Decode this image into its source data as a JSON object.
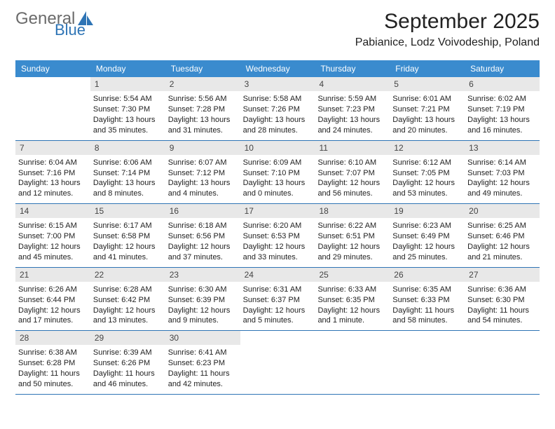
{
  "brand": {
    "general": "General",
    "blue": "Blue",
    "logo_color": "#2e74b5"
  },
  "title": "September 2025",
  "location": "Pabianice, Lodz Voivodeship, Poland",
  "colors": {
    "header_bg": "#3a8bce",
    "header_text": "#ffffff",
    "daynum_bg": "#e8e8e8",
    "row_border": "#2e74b5",
    "text": "#222222",
    "background": "#ffffff"
  },
  "dow": [
    "Sunday",
    "Monday",
    "Tuesday",
    "Wednesday",
    "Thursday",
    "Friday",
    "Saturday"
  ],
  "weeks": [
    [
      {
        "num": "",
        "sunrise": "",
        "sunset": "",
        "daylight": ""
      },
      {
        "num": "1",
        "sunrise": "Sunrise: 5:54 AM",
        "sunset": "Sunset: 7:30 PM",
        "daylight": "Daylight: 13 hours and 35 minutes."
      },
      {
        "num": "2",
        "sunrise": "Sunrise: 5:56 AM",
        "sunset": "Sunset: 7:28 PM",
        "daylight": "Daylight: 13 hours and 31 minutes."
      },
      {
        "num": "3",
        "sunrise": "Sunrise: 5:58 AM",
        "sunset": "Sunset: 7:26 PM",
        "daylight": "Daylight: 13 hours and 28 minutes."
      },
      {
        "num": "4",
        "sunrise": "Sunrise: 5:59 AM",
        "sunset": "Sunset: 7:23 PM",
        "daylight": "Daylight: 13 hours and 24 minutes."
      },
      {
        "num": "5",
        "sunrise": "Sunrise: 6:01 AM",
        "sunset": "Sunset: 7:21 PM",
        "daylight": "Daylight: 13 hours and 20 minutes."
      },
      {
        "num": "6",
        "sunrise": "Sunrise: 6:02 AM",
        "sunset": "Sunset: 7:19 PM",
        "daylight": "Daylight: 13 hours and 16 minutes."
      }
    ],
    [
      {
        "num": "7",
        "sunrise": "Sunrise: 6:04 AM",
        "sunset": "Sunset: 7:16 PM",
        "daylight": "Daylight: 13 hours and 12 minutes."
      },
      {
        "num": "8",
        "sunrise": "Sunrise: 6:06 AM",
        "sunset": "Sunset: 7:14 PM",
        "daylight": "Daylight: 13 hours and 8 minutes."
      },
      {
        "num": "9",
        "sunrise": "Sunrise: 6:07 AM",
        "sunset": "Sunset: 7:12 PM",
        "daylight": "Daylight: 13 hours and 4 minutes."
      },
      {
        "num": "10",
        "sunrise": "Sunrise: 6:09 AM",
        "sunset": "Sunset: 7:10 PM",
        "daylight": "Daylight: 13 hours and 0 minutes."
      },
      {
        "num": "11",
        "sunrise": "Sunrise: 6:10 AM",
        "sunset": "Sunset: 7:07 PM",
        "daylight": "Daylight: 12 hours and 56 minutes."
      },
      {
        "num": "12",
        "sunrise": "Sunrise: 6:12 AM",
        "sunset": "Sunset: 7:05 PM",
        "daylight": "Daylight: 12 hours and 53 minutes."
      },
      {
        "num": "13",
        "sunrise": "Sunrise: 6:14 AM",
        "sunset": "Sunset: 7:03 PM",
        "daylight": "Daylight: 12 hours and 49 minutes."
      }
    ],
    [
      {
        "num": "14",
        "sunrise": "Sunrise: 6:15 AM",
        "sunset": "Sunset: 7:00 PM",
        "daylight": "Daylight: 12 hours and 45 minutes."
      },
      {
        "num": "15",
        "sunrise": "Sunrise: 6:17 AM",
        "sunset": "Sunset: 6:58 PM",
        "daylight": "Daylight: 12 hours and 41 minutes."
      },
      {
        "num": "16",
        "sunrise": "Sunrise: 6:18 AM",
        "sunset": "Sunset: 6:56 PM",
        "daylight": "Daylight: 12 hours and 37 minutes."
      },
      {
        "num": "17",
        "sunrise": "Sunrise: 6:20 AM",
        "sunset": "Sunset: 6:53 PM",
        "daylight": "Daylight: 12 hours and 33 minutes."
      },
      {
        "num": "18",
        "sunrise": "Sunrise: 6:22 AM",
        "sunset": "Sunset: 6:51 PM",
        "daylight": "Daylight: 12 hours and 29 minutes."
      },
      {
        "num": "19",
        "sunrise": "Sunrise: 6:23 AM",
        "sunset": "Sunset: 6:49 PM",
        "daylight": "Daylight: 12 hours and 25 minutes."
      },
      {
        "num": "20",
        "sunrise": "Sunrise: 6:25 AM",
        "sunset": "Sunset: 6:46 PM",
        "daylight": "Daylight: 12 hours and 21 minutes."
      }
    ],
    [
      {
        "num": "21",
        "sunrise": "Sunrise: 6:26 AM",
        "sunset": "Sunset: 6:44 PM",
        "daylight": "Daylight: 12 hours and 17 minutes."
      },
      {
        "num": "22",
        "sunrise": "Sunrise: 6:28 AM",
        "sunset": "Sunset: 6:42 PM",
        "daylight": "Daylight: 12 hours and 13 minutes."
      },
      {
        "num": "23",
        "sunrise": "Sunrise: 6:30 AM",
        "sunset": "Sunset: 6:39 PM",
        "daylight": "Daylight: 12 hours and 9 minutes."
      },
      {
        "num": "24",
        "sunrise": "Sunrise: 6:31 AM",
        "sunset": "Sunset: 6:37 PM",
        "daylight": "Daylight: 12 hours and 5 minutes."
      },
      {
        "num": "25",
        "sunrise": "Sunrise: 6:33 AM",
        "sunset": "Sunset: 6:35 PM",
        "daylight": "Daylight: 12 hours and 1 minute."
      },
      {
        "num": "26",
        "sunrise": "Sunrise: 6:35 AM",
        "sunset": "Sunset: 6:33 PM",
        "daylight": "Daylight: 11 hours and 58 minutes."
      },
      {
        "num": "27",
        "sunrise": "Sunrise: 6:36 AM",
        "sunset": "Sunset: 6:30 PM",
        "daylight": "Daylight: 11 hours and 54 minutes."
      }
    ],
    [
      {
        "num": "28",
        "sunrise": "Sunrise: 6:38 AM",
        "sunset": "Sunset: 6:28 PM",
        "daylight": "Daylight: 11 hours and 50 minutes."
      },
      {
        "num": "29",
        "sunrise": "Sunrise: 6:39 AM",
        "sunset": "Sunset: 6:26 PM",
        "daylight": "Daylight: 11 hours and 46 minutes."
      },
      {
        "num": "30",
        "sunrise": "Sunrise: 6:41 AM",
        "sunset": "Sunset: 6:23 PM",
        "daylight": "Daylight: 11 hours and 42 minutes."
      },
      {
        "num": "",
        "sunrise": "",
        "sunset": "",
        "daylight": ""
      },
      {
        "num": "",
        "sunrise": "",
        "sunset": "",
        "daylight": ""
      },
      {
        "num": "",
        "sunrise": "",
        "sunset": "",
        "daylight": ""
      },
      {
        "num": "",
        "sunrise": "",
        "sunset": "",
        "daylight": ""
      }
    ]
  ]
}
